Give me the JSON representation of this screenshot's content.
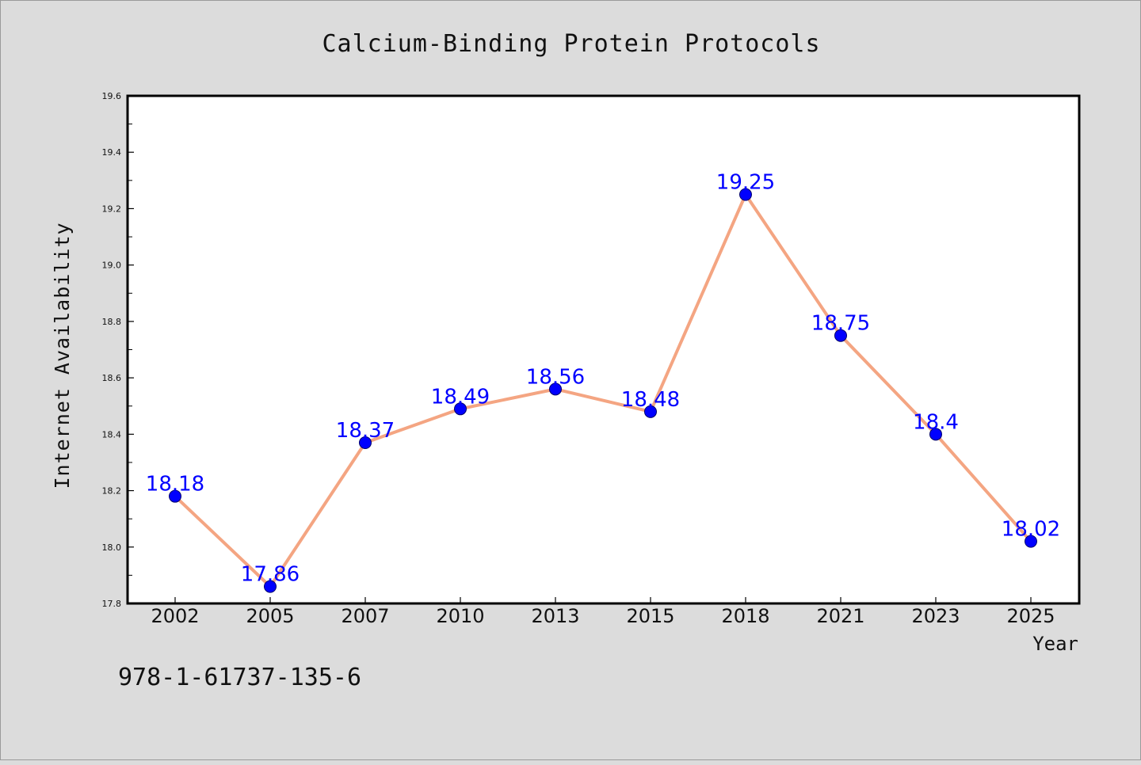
{
  "chart_data": {
    "type": "line",
    "title": "Calcium-Binding Protein Protocols",
    "xlabel": "Year",
    "ylabel": "Internet Availability",
    "categories": [
      "2002",
      "2005",
      "2007",
      "2010",
      "2013",
      "2015",
      "2018",
      "2021",
      "2023",
      "2025"
    ],
    "values": [
      18.18,
      17.86,
      18.37,
      18.49,
      18.56,
      18.48,
      19.25,
      18.75,
      18.4,
      18.02
    ],
    "data_labels": [
      "18.18",
      "17.86",
      "18.37",
      "18.49",
      "18.56",
      "18.48",
      "19.25",
      "18.75",
      "18.4",
      "18.02"
    ],
    "ylim": [
      17.8,
      19.6
    ],
    "yticks": [
      "17.8",
      "18.0",
      "18.2",
      "18.4",
      "18.6",
      "18.8",
      "19.0",
      "19.2",
      "19.4",
      "19.6"
    ],
    "grid": false,
    "line_color": "#f4a582",
    "marker_color": "#0000ff",
    "label_color": "#0000ff"
  },
  "annotation": "978-1-61737-135-6"
}
